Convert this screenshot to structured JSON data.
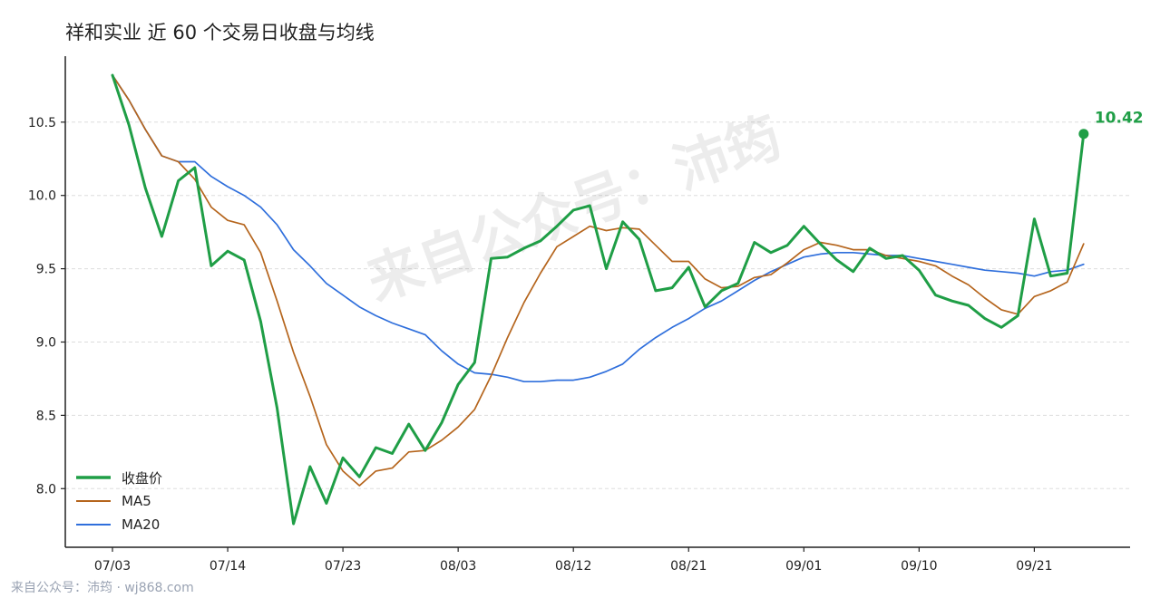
{
  "chart_data": {
    "type": "line",
    "title": "祥和实业 近 60 个交易日收盘与均线",
    "xlabel": "",
    "ylabel": "",
    "ylim": [
      7.6,
      10.95
    ],
    "y_ticks": [
      8.0,
      8.5,
      9.0,
      9.5,
      10.0,
      10.5
    ],
    "grid": "horizontal-dashed",
    "legend_position": "bottom-left",
    "x_tick_labels": [
      "07/03",
      "07/14",
      "07/23",
      "08/03",
      "08/12",
      "08/21",
      "09/01",
      "09/10",
      "09/21"
    ],
    "x_tick_indices": [
      0,
      7,
      14,
      21,
      28,
      35,
      42,
      49,
      56
    ],
    "n_points": 60,
    "series": [
      {
        "name": "收盘价",
        "color": "#1f9e46",
        "values": [
          10.82,
          10.48,
          10.05,
          9.72,
          10.1,
          10.19,
          9.52,
          9.62,
          9.56,
          9.14,
          8.55,
          7.76,
          8.15,
          7.9,
          8.21,
          8.08,
          8.28,
          8.24,
          8.44,
          8.26,
          8.45,
          8.71,
          8.86,
          9.57,
          9.58,
          9.64,
          9.69,
          9.79,
          9.9,
          9.93,
          9.5,
          9.82,
          9.7,
          9.35,
          9.37,
          9.51,
          9.24,
          9.35,
          9.4,
          9.68,
          9.61,
          9.66,
          9.79,
          9.67,
          9.56,
          9.48,
          9.64,
          9.57,
          9.59,
          9.49,
          9.32,
          9.28,
          9.25,
          9.16,
          9.1,
          9.18,
          9.84,
          9.45,
          9.47,
          10.42
        ]
      },
      {
        "name": "MA5",
        "color": "#b5651d",
        "values": [
          10.82,
          10.65,
          10.45,
          10.27,
          10.23,
          10.11,
          9.92,
          9.83,
          9.8,
          9.61,
          9.28,
          8.93,
          8.63,
          8.3,
          8.12,
          8.02,
          8.12,
          8.14,
          8.25,
          8.26,
          8.33,
          8.42,
          8.54,
          8.77,
          9.03,
          9.27,
          9.47,
          9.65,
          9.72,
          9.79,
          9.76,
          9.78,
          9.77,
          9.66,
          9.55,
          9.55,
          9.43,
          9.37,
          9.38,
          9.44,
          9.46,
          9.54,
          9.63,
          9.68,
          9.66,
          9.63,
          9.63,
          9.59,
          9.57,
          9.55,
          9.52,
          9.45,
          9.39,
          9.3,
          9.22,
          9.19,
          9.31,
          9.35,
          9.41,
          9.67
        ]
      },
      {
        "name": "MA20",
        "color": "#2f6fdc",
        "values": [
          10.82,
          10.65,
          10.45,
          10.27,
          10.23,
          10.23,
          10.13,
          10.06,
          10.0,
          9.92,
          9.8,
          9.63,
          9.52,
          9.4,
          9.32,
          9.24,
          9.18,
          9.13,
          9.09,
          9.05,
          8.94,
          8.85,
          8.79,
          8.78,
          8.76,
          8.73,
          8.73,
          8.74,
          8.74,
          8.76,
          8.8,
          8.85,
          8.95,
          9.03,
          9.1,
          9.16,
          9.23,
          9.28,
          9.35,
          9.42,
          9.48,
          9.53,
          9.58,
          9.6,
          9.61,
          9.61,
          9.6,
          9.59,
          9.59,
          9.57,
          9.55,
          9.53,
          9.51,
          9.49,
          9.48,
          9.47,
          9.45,
          9.48,
          9.49,
          9.53
        ]
      }
    ],
    "last_value_label": "10.42"
  },
  "watermark": "来自公众号：沛筠",
  "footer": "来自公众号：沛筠 · wj868.com"
}
